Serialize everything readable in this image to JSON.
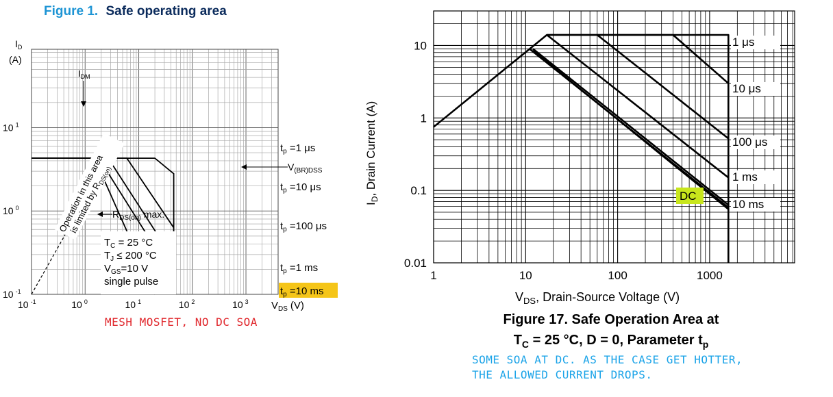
{
  "colors": {
    "title_blue": "#1d94d4",
    "title_dark": "#0b2b5c",
    "highlight_yellow": "#f5c518",
    "highlight_green": "#c8e61c",
    "note_red": "#e0262b",
    "note_cyan": "#1aa3e8",
    "ink": "#000000"
  },
  "left": {
    "figure_label": "Figure 1.",
    "title": "Safe operating area",
    "ylabel_main": "I",
    "ylabel_sub": "D",
    "ylabel_unit": "(A)",
    "xlabel_main": "V",
    "xlabel_sub": "DS",
    "xlabel_unit": "(V)",
    "y_ticks": [
      {
        "base": "10",
        "exp": "1"
      },
      {
        "base": "10",
        "exp": "0"
      },
      {
        "base": "10",
        "exp": "-1"
      }
    ],
    "x_ticks": [
      {
        "base": "10",
        "exp": "-1"
      },
      {
        "base": "10",
        "exp": "0"
      },
      {
        "base": "10",
        "exp": "1"
      },
      {
        "base": "10",
        "exp": "2"
      },
      {
        "base": "10",
        "exp": "3"
      }
    ],
    "idm_label": {
      "main": "I",
      "sub": "DM"
    },
    "vbrdss_label": {
      "main": "V",
      "sub": "(BR)DSS"
    },
    "rds_label": {
      "main": "R",
      "sub": "DS(on)",
      "suffix": "max."
    },
    "rotated_note_line1": "Operation in this area",
    "rotated_note_line2_main": "is limited by R",
    "rotated_note_line2_sub": "DS(on)",
    "conditions": [
      {
        "main": "T",
        "sub": "C",
        "rest": " = 25 °C"
      },
      {
        "main": "T",
        "sub": "J",
        "rest": " ≤ 200 °C"
      },
      {
        "main": "V",
        "sub": "GS",
        "rest": "=10 V"
      },
      {
        "main": "single pulse",
        "sub": "",
        "rest": ""
      }
    ],
    "pulse_labels": [
      {
        "main": "t",
        "sub": "p",
        "rest": " =1 μs"
      },
      {
        "main": "t",
        "sub": "p",
        "rest": " =10 μs"
      },
      {
        "main": "t",
        "sub": "p",
        "rest": " =100 μs"
      },
      {
        "main": "t",
        "sub": "p",
        "rest": " =1 ms"
      },
      {
        "main": "t",
        "sub": "p",
        "rest": " =10 ms"
      }
    ],
    "note": "MESH MOSFET, NO DC SOA"
  },
  "right": {
    "ylabel_pre": "I",
    "ylabel_sub": "D",
    "ylabel_post": ", Drain Current (A)",
    "xlabel_pre": "V",
    "xlabel_sub": "DS",
    "xlabel_post": ", Drain-Source Voltage (V)",
    "y_ticks": [
      "10",
      "1",
      "0.1",
      "0.01"
    ],
    "x_ticks": [
      "1",
      "10",
      "100",
      "1000"
    ],
    "curve_labels": [
      "1 μs",
      "10 μs",
      "100 μs",
      "1 ms",
      "10 ms"
    ],
    "dc_label": "DC",
    "caption_line1": "Figure 17. Safe Operation Area at",
    "caption_line2_pre": "T",
    "caption_line2_sub": "C",
    "caption_line2_post": " = 25 °C, D = 0, Parameter t",
    "caption_line2_sub2": "p",
    "note_line1": "SOME SOA AT DC. AS THE CASE GET HOTTER,",
    "note_line2": "THE ALLOWED CURRENT DROPS."
  },
  "chart_data": [
    {
      "type": "line",
      "title": "Safe operating area",
      "xlabel": "VDS (V)",
      "ylabel": "ID (A)",
      "x_scale": "log",
      "y_scale": "log",
      "xlim": [
        0.1,
        1000
      ],
      "ylim": [
        0.1,
        10
      ],
      "grid": true,
      "series": [
        {
          "name": "tp =1 μs",
          "x": [
            0.1,
            20,
            45,
            45
          ],
          "y": [
            4.3,
            4.3,
            2.8,
            0.1
          ]
        },
        {
          "name": "tp =10 μs",
          "x": [
            0.1,
            6,
            45,
            45
          ],
          "y": [
            4.3,
            4.3,
            0.63,
            0.1
          ]
        },
        {
          "name": "tp =100 μs",
          "x": [
            0.1,
            2.7,
            45,
            45
          ],
          "y": [
            4.3,
            4.3,
            0.26,
            0.1
          ]
        },
        {
          "name": "tp =1 ms",
          "x": [
            0.1,
            1.8,
            45
          ],
          "y": [
            4.3,
            4.3,
            0.16
          ]
        },
        {
          "name": "tp =10 ms",
          "x": [
            0.1,
            1.5,
            20
          ],
          "y": [
            4.3,
            4.3,
            0.1
          ]
        },
        {
          "name": "RDS(on) max.",
          "x": [
            0.1,
            2.7
          ],
          "y": [
            0.1,
            4.3
          ]
        }
      ]
    },
    {
      "type": "line",
      "title": "Figure 17. Safe Operation Area at TC = 25 °C, D = 0, Parameter tp",
      "xlabel": "VDS, Drain-Source Voltage (V)",
      "ylabel": "ID, Drain Current (A)",
      "x_scale": "log",
      "y_scale": "log",
      "xlim": [
        1,
        1600
      ],
      "ylim": [
        0.01,
        20
      ],
      "grid": true,
      "series": [
        {
          "name": "1 μs",
          "x": [
            17,
            400,
            1600
          ],
          "y": [
            14,
            14,
            3
          ]
        },
        {
          "name": "10 μs",
          "x": [
            60,
            1600
          ],
          "y": [
            14,
            0.52
          ]
        },
        {
          "name": "100 μs",
          "x": [
            17,
            1600
          ],
          "y": [
            14,
            0.15
          ]
        },
        {
          "name": "1 ms",
          "x": [
            12,
            1600
          ],
          "y": [
            9,
            0.063
          ]
        },
        {
          "name": "10 ms",
          "x": [
            11,
            1600
          ],
          "y": [
            9,
            0.058
          ]
        },
        {
          "name": "DC",
          "x": [
            12,
            1600
          ],
          "y": [
            8.5,
            0.055
          ]
        },
        {
          "name": "",
          "x": [
            1,
            17,
            1600,
            1600
          ],
          "y": [
            0.75,
            14,
            14,
            0.01
          ]
        }
      ]
    }
  ]
}
